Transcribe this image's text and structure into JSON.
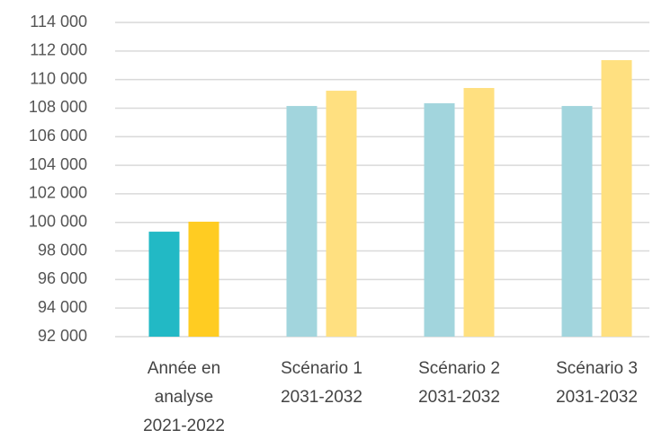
{
  "chart_data": {
    "type": "bar",
    "categories": [
      [
        "Année en",
        "analyse",
        "2021-2022"
      ],
      [
        "Scénario 1",
        "2031-2032"
      ],
      [
        "Scénario 2",
        "2031-2032"
      ],
      [
        "Scénario 3",
        "2031-2032"
      ]
    ],
    "series": [
      {
        "colors": [
          "#22b9c5",
          "#a2d5dd",
          "#a2d5dd",
          "#a2d5dd"
        ],
        "values": [
          99350,
          108150,
          108340,
          108150
        ]
      },
      {
        "colors": [
          "#ffcc22",
          "#ffe080",
          "#ffe080",
          "#ffe080"
        ],
        "values": [
          100050,
          109220,
          109410,
          111360
        ]
      }
    ],
    "ylim": [
      92000,
      114000
    ],
    "yticks": [
      {
        "value": 92000,
        "label": "92 000"
      },
      {
        "value": 94000,
        "label": "94 000"
      },
      {
        "value": 96000,
        "label": "96 000"
      },
      {
        "value": 98000,
        "label": "98 000"
      },
      {
        "value": 100000,
        "label": "100 000"
      },
      {
        "value": 102000,
        "label": "102 000"
      },
      {
        "value": 104000,
        "label": "104 000"
      },
      {
        "value": 106000,
        "label": "106 000"
      },
      {
        "value": 108000,
        "label": "108 000"
      },
      {
        "value": 110000,
        "label": "110 000"
      },
      {
        "value": 112000,
        "label": "112 000"
      },
      {
        "value": 114000,
        "label": "114 000"
      }
    ],
    "grid": true
  }
}
